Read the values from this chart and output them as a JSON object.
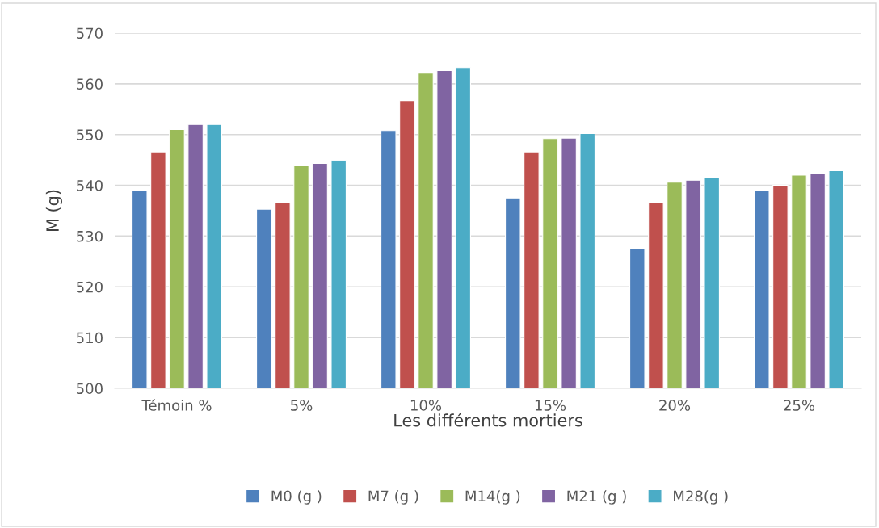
{
  "chart_data": {
    "type": "bar",
    "xlabel": "Les différents mortiers",
    "ylabel": "M (g)",
    "categories": [
      "Témoin %",
      "5%",
      "10%",
      "15%",
      "20%",
      "25%"
    ],
    "series": [
      {
        "name": "M0 (g )",
        "color": "#4f81bd",
        "values": [
          538.9,
          535.3,
          550.8,
          537.5,
          527.5,
          538.9
        ]
      },
      {
        "name": "M7 (g )",
        "color": "#c0504d",
        "values": [
          546.6,
          536.6,
          556.7,
          546.6,
          536.6,
          540.0
        ]
      },
      {
        "name": "M14(g )",
        "color": "#9bbb59",
        "values": [
          551.0,
          544.0,
          562.1,
          549.2,
          540.6,
          542.0
        ]
      },
      {
        "name": "M21 (g )",
        "color": "#8064a2",
        "values": [
          552.0,
          544.3,
          562.6,
          549.3,
          541.0,
          542.3
        ]
      },
      {
        "name": "M28(g )",
        "color": "#4bacc6",
        "values": [
          552.0,
          544.9,
          563.2,
          550.2,
          541.6,
          542.9
        ]
      }
    ],
    "ylim": [
      500,
      570
    ],
    "yticks": [
      500,
      510,
      520,
      530,
      540,
      550,
      560,
      570
    ],
    "grid": "y",
    "legend": "bottom"
  }
}
